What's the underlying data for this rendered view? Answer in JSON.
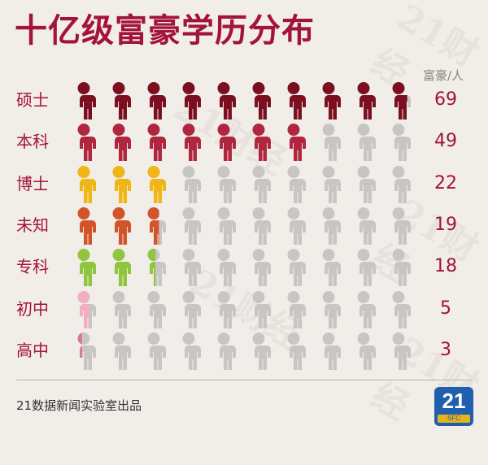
{
  "title": "十亿级富豪学历分布",
  "unit_label": "富豪/人",
  "footer_text": "21数据新闻实验室出品",
  "logo": {
    "number": "21",
    "subtitle": "SFC"
  },
  "watermark_text": "21财经",
  "colors": {
    "title": "#a3133a",
    "inactive": "#c8c6c4"
  },
  "chart_data": {
    "type": "bar",
    "title": "十亿级富豪学历分布",
    "ylabel": "富豪/人",
    "icons_per_row": 10,
    "icon_scale": 70,
    "categories": [
      "硕士",
      "本科",
      "博士",
      "未知",
      "专科",
      "初中",
      "高中"
    ],
    "values": [
      69,
      49,
      22,
      19,
      18,
      5,
      3
    ],
    "series_colors": [
      "#7b0f1f",
      "#b0263f",
      "#f0b616",
      "#d4542a",
      "#8fc63d",
      "#f2afc4",
      "#e27398"
    ]
  }
}
